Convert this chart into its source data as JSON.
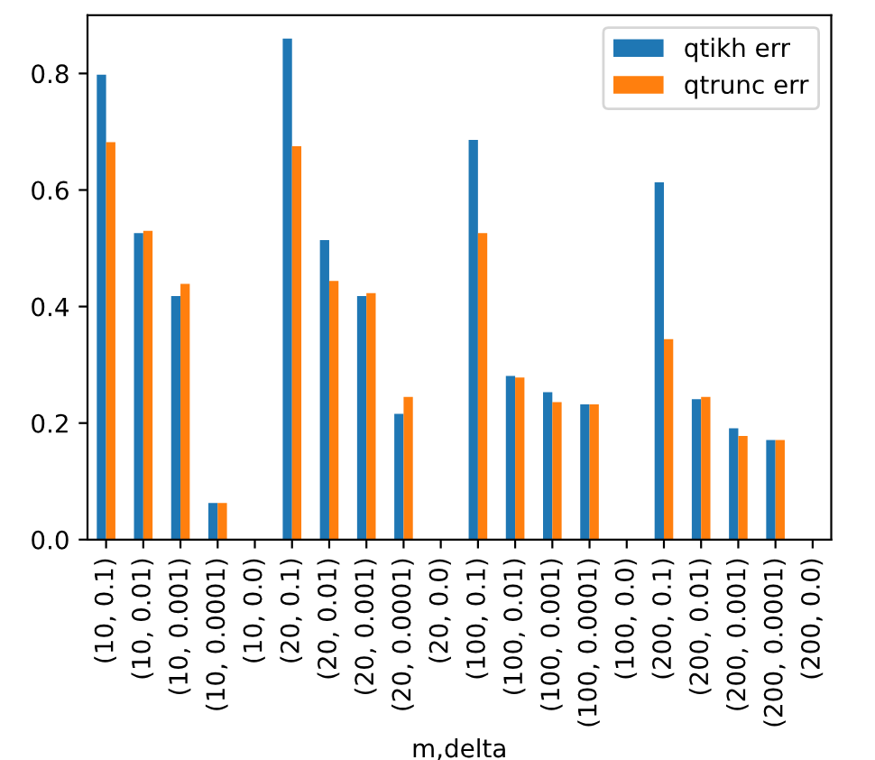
{
  "chart_data": {
    "type": "bar",
    "xlabel": "m,delta",
    "categories": [
      "(10, 0.1)",
      "(10, 0.01)",
      "(10, 0.001)",
      "(10, 0.0001)",
      "(10, 0.0)",
      "(20, 0.1)",
      "(20, 0.01)",
      "(20, 0.001)",
      "(20, 0.0001)",
      "(20, 0.0)",
      "(100, 0.1)",
      "(100, 0.01)",
      "(100, 0.001)",
      "(100, 0.0001)",
      "(100, 0.0)",
      "(200, 0.1)",
      "(200, 0.01)",
      "(200, 0.001)",
      "(200, 0.0001)",
      "(200, 0.0)"
    ],
    "series": [
      {
        "name": "qtikh err",
        "color": "#1f77b4",
        "values": [
          0.798,
          0.526,
          0.418,
          0.063,
          null,
          0.86,
          0.514,
          0.418,
          0.216,
          null,
          0.686,
          0.281,
          0.253,
          0.232,
          null,
          0.613,
          0.241,
          0.191,
          0.171,
          null
        ]
      },
      {
        "name": "qtrunc err",
        "color": "#ff7f0e",
        "values": [
          0.682,
          0.53,
          0.439,
          0.063,
          null,
          0.675,
          0.444,
          0.423,
          0.245,
          null,
          0.526,
          0.278,
          0.236,
          0.232,
          null,
          0.344,
          0.245,
          0.178,
          0.171,
          null
        ]
      }
    ],
    "ylim": [
      0,
      0.9
    ],
    "yticks": [
      {
        "value": 0,
        "label": "0.0"
      },
      0.2,
      0.4,
      0.6,
      0.8
    ],
    "legend": "top right",
    "grid": false
  }
}
